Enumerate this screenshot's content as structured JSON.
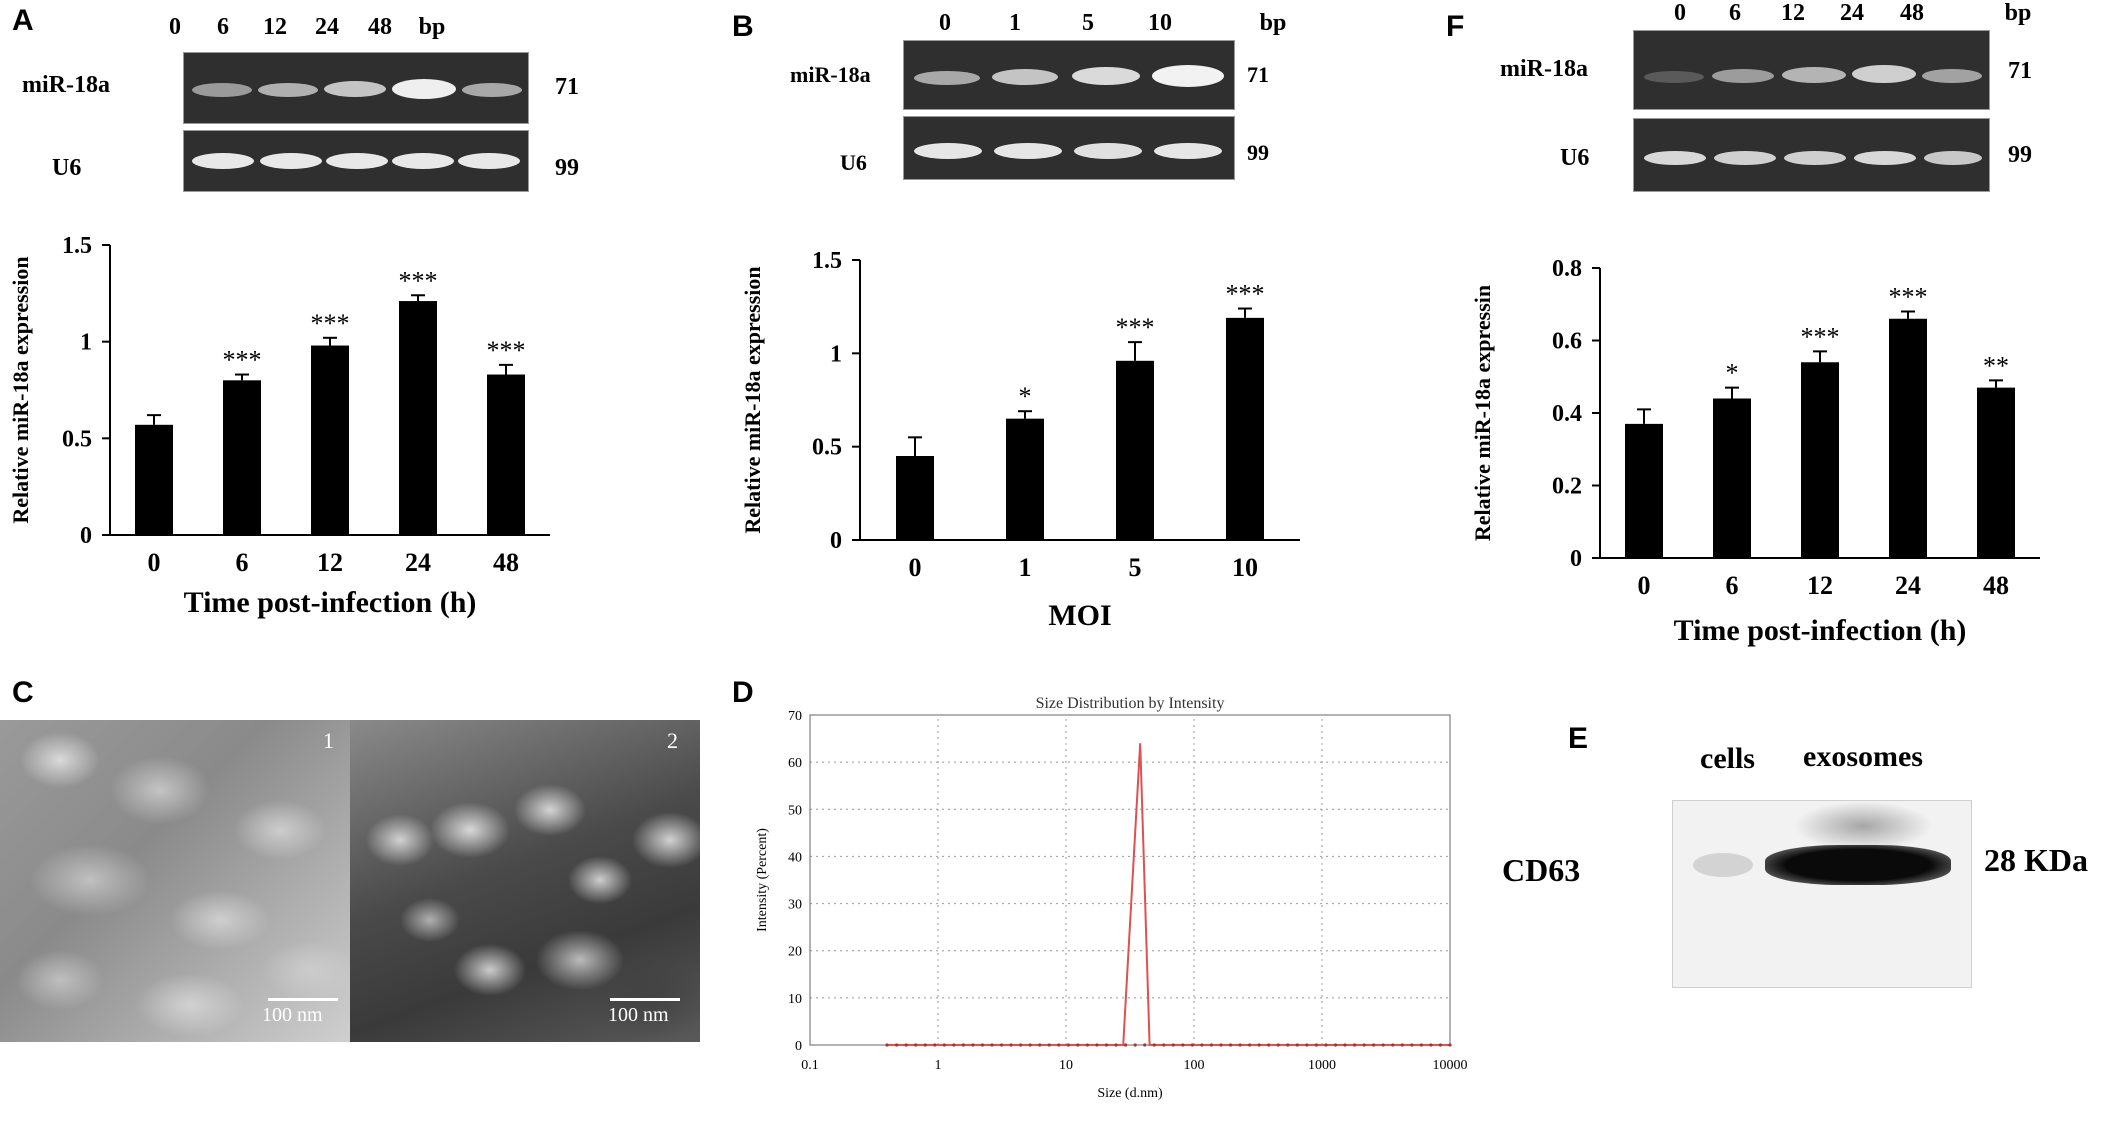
{
  "panels": {
    "A": {
      "letter": "A",
      "gel": {
        "lanes": [
          "0",
          "6",
          "12",
          "24",
          "48"
        ],
        "unit": "bp",
        "rows": [
          {
            "name": "miR-18a",
            "size": "71"
          },
          {
            "name": "U6",
            "size": "99"
          }
        ]
      }
    },
    "B": {
      "letter": "B",
      "gel": {
        "lanes": [
          "0",
          "1",
          "5",
          "10"
        ],
        "unit": "bp",
        "rows": [
          {
            "name": "miR-18a",
            "size": "71"
          },
          {
            "name": "U6",
            "size": "99"
          }
        ]
      }
    },
    "C": {
      "letter": "C",
      "images": [
        {
          "label": "1",
          "scale": "100 nm"
        },
        {
          "label": "2",
          "scale": "100 nm"
        }
      ]
    },
    "D": {
      "letter": "D"
    },
    "E": {
      "letter": "E",
      "lanes": [
        "cells",
        "exosomes"
      ],
      "protein": "CD63",
      "size": "28 KDa"
    },
    "F": {
      "letter": "F",
      "gel": {
        "lanes": [
          "0",
          "6",
          "12",
          "24",
          "48"
        ],
        "unit": "bp",
        "rows": [
          {
            "name": "miR-18a",
            "size": "71"
          },
          {
            "name": "U6",
            "size": "99"
          }
        ]
      }
    }
  },
  "chart_data": [
    {
      "panel": "A",
      "type": "bar",
      "categories": [
        "0",
        "6",
        "12",
        "24",
        "48"
      ],
      "values": [
        0.57,
        0.8,
        0.98,
        1.21,
        0.83
      ],
      "errors": [
        0.05,
        0.03,
        0.04,
        0.03,
        0.05
      ],
      "significance": [
        "",
        "***",
        "***",
        "***",
        "***"
      ],
      "xlabel": "Time post-infection (h)",
      "ylabel": "Relative miR-18a expression",
      "yticks": [
        "0",
        "0.5",
        "1",
        "1.5"
      ],
      "ylim": [
        0,
        1.5
      ],
      "color": "#000000"
    },
    {
      "panel": "B",
      "type": "bar",
      "categories": [
        "0",
        "1",
        "5",
        "10"
      ],
      "values": [
        0.45,
        0.65,
        0.96,
        1.19
      ],
      "errors": [
        0.1,
        0.04,
        0.1,
        0.05
      ],
      "significance": [
        "",
        "*",
        "***",
        "***"
      ],
      "xlabel": "MOI",
      "ylabel": "Relative miR-18a  expression",
      "yticks": [
        "0",
        "0.5",
        "1",
        "1.5"
      ],
      "ylim": [
        0,
        1.5
      ],
      "color": "#000000"
    },
    {
      "panel": "F",
      "type": "bar",
      "categories": [
        "0",
        "6",
        "12",
        "24",
        "48"
      ],
      "values": [
        0.37,
        0.44,
        0.54,
        0.66,
        0.47
      ],
      "errors": [
        0.04,
        0.03,
        0.03,
        0.02,
        0.02
      ],
      "significance": [
        "",
        "*",
        "***",
        "***",
        "**"
      ],
      "xlabel": "Time post-infection (h)",
      "ylabel": "Relative miR-18a expressin",
      "yticks": [
        "0",
        "0.2",
        "0.4",
        "0.6",
        "0.8"
      ],
      "ylim": [
        0,
        0.8
      ],
      "color": "#000000"
    },
    {
      "panel": "D",
      "type": "line",
      "title": "Size Distribution by Intensity",
      "xlabel": "Size (d.nm)",
      "ylabel": "Intensity (Percent)",
      "xscale": "log",
      "xlim": [
        0.1,
        10000
      ],
      "xticks": [
        "0.1",
        "1",
        "10",
        "100",
        "1000",
        "10000"
      ],
      "ylim": [
        0,
        70
      ],
      "yticks": [
        "0",
        "10",
        "20",
        "30",
        "40",
        "50",
        "60",
        "70"
      ],
      "grid": true,
      "line_color": "#e05050",
      "x": [
        0.4,
        1,
        10,
        28,
        38,
        45,
        100,
        1000,
        10000
      ],
      "y": [
        0,
        0,
        0,
        0,
        64,
        0,
        0,
        0,
        0
      ]
    }
  ]
}
